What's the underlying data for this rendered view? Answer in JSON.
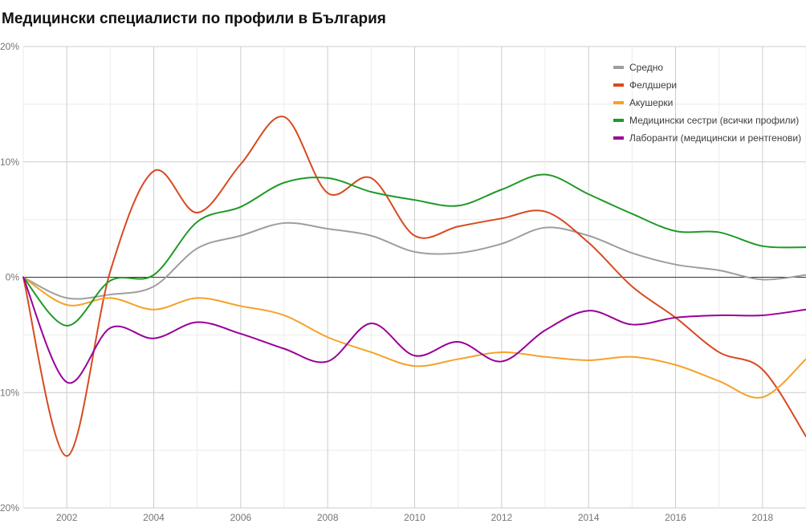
{
  "chart_data": {
    "type": "line",
    "title": "Медицински специалисти по профили в България",
    "xlabel": "",
    "ylabel": "",
    "x": [
      2001,
      2002,
      2003,
      2004,
      2005,
      2006,
      2007,
      2008,
      2009,
      2010,
      2011,
      2012,
      2013,
      2014,
      2015,
      2016,
      2017,
      2018,
      2019
    ],
    "xlim": [
      2001,
      2019
    ],
    "ylim": [
      -20,
      20
    ],
    "x_ticks": [
      "2002",
      "2004",
      "2006",
      "2008",
      "2010",
      "2012",
      "2014",
      "2016",
      "2018"
    ],
    "y_ticks": [
      "-20%",
      "-10%",
      "0%",
      "10%",
      "20%"
    ],
    "grid": true,
    "legend_position": "top-right",
    "series": [
      {
        "name": "Средно",
        "color": "#9e9e9e",
        "values": [
          0,
          -1.8,
          -1.5,
          -0.8,
          2.5,
          3.6,
          4.7,
          4.2,
          3.6,
          2.2,
          2.1,
          2.9,
          4.3,
          3.6,
          2.1,
          1.1,
          0.6,
          -0.2,
          0.2
        ]
      },
      {
        "name": "Фелдшери",
        "color": "#d84a1f",
        "values": [
          0,
          -15.5,
          0.5,
          9.2,
          5.6,
          9.8,
          13.9,
          7.3,
          8.6,
          3.6,
          4.4,
          5.1,
          5.7,
          3.0,
          -0.8,
          -3.5,
          -6.5,
          -8.0,
          -13.8
        ]
      },
      {
        "name": "Акушерки",
        "color": "#f5a229",
        "values": [
          0,
          -2.4,
          -1.8,
          -2.8,
          -1.8,
          -2.5,
          -3.3,
          -5.2,
          -6.5,
          -7.7,
          -7.1,
          -6.5,
          -6.9,
          -7.2,
          -6.9,
          -7.6,
          -9.0,
          -10.4,
          -7.1
        ]
      },
      {
        "name": "Медицински сестри (всички профили)",
        "color": "#1e9a26",
        "values": [
          0,
          -4.2,
          -0.3,
          0.2,
          4.8,
          6.1,
          8.2,
          8.6,
          7.4,
          6.7,
          6.2,
          7.6,
          8.9,
          7.2,
          5.5,
          4.0,
          3.9,
          2.7,
          2.6
        ]
      },
      {
        "name": "Лаборанти (медицински и рентгенови)",
        "color": "#990099",
        "values": [
          0,
          -9.1,
          -4.4,
          -5.3,
          -3.9,
          -4.9,
          -6.2,
          -7.3,
          -4.0,
          -6.8,
          -5.6,
          -7.3,
          -4.6,
          -2.9,
          -4.1,
          -3.5,
          -3.3,
          -3.3,
          -2.8
        ]
      }
    ]
  }
}
